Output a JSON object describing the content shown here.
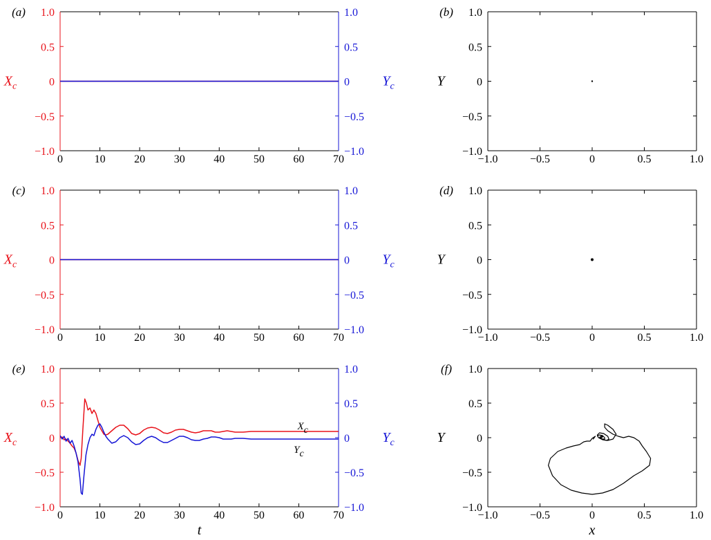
{
  "colors": {
    "x_series": "#e8121a",
    "y_series": "#1515d6",
    "trajectory": "#000000",
    "axes": "#000000"
  },
  "labels": {
    "xc_main": "X",
    "xc_sub": "c",
    "yc_main": "Y",
    "yc_sub": "c",
    "y_axis": "Y",
    "t_axis": "t",
    "x_axis": "x"
  },
  "chart_data": [
    {
      "id": "a",
      "panel_label": "(a)",
      "type": "line",
      "xlim": [
        0,
        70
      ],
      "ylim_left": [
        -1.0,
        1.0
      ],
      "ylim_right": [
        -1.0,
        1.0
      ],
      "x_ticks": [
        "0",
        "10",
        "20",
        "30",
        "40",
        "50",
        "60",
        "70"
      ],
      "y_ticks_left": [
        "1.0",
        "0.5",
        "0",
        "−0.5",
        "−1.0"
      ],
      "y_ticks_right": [
        "1.0",
        "0.5",
        "0",
        "−0.5",
        "−1.0"
      ],
      "ylabel_left": "Xc",
      "ylabel_right": "Yc",
      "xlabel": "",
      "series": [
        {
          "key": "X",
          "x": [
            0,
            70
          ],
          "y": [
            0.0,
            0.0
          ]
        },
        {
          "key": "Y",
          "x": [
            0,
            70
          ],
          "y": [
            0.0,
            0.0
          ]
        }
      ]
    },
    {
      "id": "b",
      "panel_label": "(b)",
      "type": "scatter",
      "xlim": [
        -1.0,
        1.0
      ],
      "ylim": [
        -1.0,
        1.0
      ],
      "x_ticks": [
        "−1.0",
        "−0.5",
        "0",
        "0.5",
        "1.0"
      ],
      "y_ticks": [
        "1.0",
        "0.5",
        "0",
        "−0.5",
        "−1.0"
      ],
      "ylabel": "Y",
      "xlabel": "",
      "points": [
        [
          0.0,
          0.0
        ]
      ]
    },
    {
      "id": "c",
      "panel_label": "(c)",
      "type": "line",
      "xlim": [
        0,
        70
      ],
      "ylim_left": [
        -1.0,
        1.0
      ],
      "ylim_right": [
        -1.0,
        1.0
      ],
      "x_ticks": [
        "0",
        "10",
        "20",
        "30",
        "40",
        "50",
        "60",
        "70"
      ],
      "y_ticks_left": [
        "1.0",
        "0.5",
        "0",
        "−0.5",
        "−1.0"
      ],
      "y_ticks_right": [
        "1.0",
        "0.5",
        "0",
        "−0.5",
        "−1.0"
      ],
      "ylabel_left": "Xc",
      "ylabel_right": "Yc",
      "xlabel": "",
      "series": [
        {
          "key": "X",
          "x": [
            0,
            70
          ],
          "y": [
            0.0,
            0.0
          ]
        },
        {
          "key": "Y",
          "x": [
            0,
            70
          ],
          "y": [
            0.0,
            0.0
          ]
        }
      ]
    },
    {
      "id": "d",
      "panel_label": "(d)",
      "type": "scatter",
      "xlim": [
        -1.0,
        1.0
      ],
      "ylim": [
        -1.0,
        1.0
      ],
      "x_ticks": [
        "−1.0",
        "−0.5",
        "0",
        "0.5",
        "1.0"
      ],
      "y_ticks": [
        "1.0",
        "0.5",
        "0",
        "−0.5",
        "−1.0"
      ],
      "ylabel": "Y",
      "xlabel": "",
      "points": [
        [
          0.0,
          0.0
        ]
      ]
    },
    {
      "id": "e",
      "panel_label": "(e)",
      "type": "line",
      "xlim": [
        0,
        70
      ],
      "ylim_left": [
        -1.0,
        1.0
      ],
      "ylim_right": [
        -1.0,
        1.0
      ],
      "x_ticks": [
        "0",
        "10",
        "20",
        "30",
        "40",
        "50",
        "60",
        "70"
      ],
      "y_ticks_left": [
        "1.0",
        "0.5",
        "0",
        "−0.5",
        "−1.0"
      ],
      "y_ticks_right": [
        "1.0",
        "0.5",
        "0",
        "−0.5",
        "−1.0"
      ],
      "ylabel_left": "Xc",
      "ylabel_right": "Yc",
      "xlabel": "t",
      "annotations": [
        {
          "text_main": "X",
          "text_sub": "c",
          "x": 61,
          "y": 0.17
        },
        {
          "text_main": "Y",
          "text_sub": "c",
          "x": 60,
          "y": -0.17
        }
      ],
      "series": [
        {
          "key": "X",
          "x": [
            0,
            0.5,
            1,
            1.5,
            2,
            2.5,
            3,
            3.5,
            4,
            4.5,
            5,
            5.3,
            5.7,
            6.2,
            6.6,
            7,
            7.5,
            8,
            8.5,
            9,
            9.5,
            10,
            10.5,
            11,
            11.5,
            12,
            13,
            14,
            15,
            16,
            17,
            18,
            19,
            20,
            21,
            22,
            23,
            24,
            25,
            26,
            27,
            28,
            29,
            30,
            31,
            32,
            33,
            34,
            35,
            36,
            37,
            38,
            39,
            40,
            41,
            42,
            43,
            44,
            45,
            46,
            48,
            50,
            52,
            55,
            60,
            65,
            70
          ],
          "y": [
            0.0,
            0.01,
            -0.03,
            -0.02,
            -0.05,
            -0.08,
            -0.12,
            -0.15,
            -0.22,
            -0.33,
            -0.4,
            -0.3,
            0.1,
            0.56,
            0.5,
            0.4,
            0.43,
            0.35,
            0.4,
            0.35,
            0.25,
            0.15,
            0.1,
            0.05,
            0.04,
            0.05,
            0.1,
            0.15,
            0.18,
            0.18,
            0.13,
            0.06,
            0.04,
            0.06,
            0.11,
            0.14,
            0.15,
            0.14,
            0.11,
            0.07,
            0.06,
            0.08,
            0.11,
            0.12,
            0.12,
            0.1,
            0.08,
            0.07,
            0.08,
            0.1,
            0.1,
            0.1,
            0.08,
            0.08,
            0.09,
            0.1,
            0.09,
            0.08,
            0.08,
            0.08,
            0.09,
            0.09,
            0.09,
            0.09,
            0.09,
            0.09,
            0.09
          ]
        },
        {
          "key": "Y",
          "x": [
            0,
            0.5,
            1,
            1.5,
            2,
            2.5,
            3,
            3.5,
            4,
            4.5,
            5,
            5.3,
            5.6,
            6,
            6.5,
            7,
            7.5,
            8,
            8.5,
            9,
            9.5,
            10,
            10.5,
            11,
            11.5,
            12,
            13,
            14,
            15,
            16,
            17,
            18,
            19,
            20,
            21,
            22,
            23,
            24,
            25,
            26,
            27,
            28,
            29,
            30,
            31,
            32,
            33,
            34,
            35,
            36,
            37,
            38,
            39,
            40,
            41,
            42,
            43,
            44,
            45,
            46,
            48,
            50,
            52,
            55,
            60,
            65,
            70
          ],
          "y": [
            0.03,
            -0.02,
            0.02,
            -0.05,
            -0.01,
            -0.08,
            -0.04,
            -0.12,
            -0.22,
            -0.35,
            -0.6,
            -0.8,
            -0.82,
            -0.55,
            -0.25,
            -0.1,
            0.0,
            0.05,
            0.03,
            0.12,
            0.18,
            0.2,
            0.15,
            0.08,
            0.02,
            -0.02,
            -0.08,
            -0.06,
            0.0,
            0.03,
            0.0,
            -0.06,
            -0.1,
            -0.09,
            -0.04,
            0.0,
            0.02,
            0.0,
            -0.04,
            -0.07,
            -0.07,
            -0.04,
            -0.01,
            0.02,
            0.02,
            0.0,
            -0.03,
            -0.04,
            -0.04,
            -0.02,
            -0.01,
            0.01,
            0.01,
            0.0,
            -0.02,
            -0.02,
            -0.02,
            -0.01,
            -0.01,
            -0.01,
            -0.02,
            -0.02,
            -0.02,
            -0.02,
            -0.02,
            -0.02,
            -0.02
          ]
        }
      ]
    },
    {
      "id": "f",
      "panel_label": "(f)",
      "type": "line",
      "xlim": [
        -1.0,
        1.0
      ],
      "ylim": [
        -1.0,
        1.0
      ],
      "x_ticks": [
        "−1.0",
        "−0.5",
        "0",
        "0.5",
        "1.0"
      ],
      "y_ticks": [
        "1.0",
        "0.5",
        "0",
        "−0.5",
        "−1.0"
      ],
      "ylabel": "Y",
      "xlabel": "x",
      "trajectory": {
        "x": [
          0.02,
          0.01,
          0.03,
          0.0,
          -0.02,
          -0.05,
          -0.08,
          -0.12,
          -0.18,
          -0.25,
          -0.33,
          -0.4,
          -0.42,
          -0.38,
          -0.3,
          -0.2,
          -0.1,
          0.0,
          0.1,
          0.2,
          0.3,
          0.4,
          0.48,
          0.55,
          0.56,
          0.52,
          0.48,
          0.45,
          0.4,
          0.35,
          0.3,
          0.25,
          0.2,
          0.15,
          0.12,
          0.12,
          0.15,
          0.2,
          0.23,
          0.2,
          0.15,
          0.1,
          0.06,
          0.05,
          0.07,
          0.11,
          0.15,
          0.16,
          0.14,
          0.1,
          0.06,
          0.05,
          0.07,
          0.1,
          0.12,
          0.12,
          0.1,
          0.08,
          0.07,
          0.08,
          0.1,
          0.1,
          0.09,
          0.08,
          0.08,
          0.09,
          0.09
        ],
        "y": [
          0.0,
          -0.02,
          0.02,
          -0.01,
          -0.05,
          -0.05,
          -0.06,
          -0.1,
          -0.12,
          -0.15,
          -0.2,
          -0.3,
          -0.4,
          -0.55,
          -0.68,
          -0.76,
          -0.8,
          -0.82,
          -0.8,
          -0.75,
          -0.66,
          -0.55,
          -0.48,
          -0.4,
          -0.3,
          -0.2,
          -0.12,
          -0.05,
          0.0,
          0.02,
          0.0,
          0.02,
          0.05,
          0.1,
          0.15,
          0.2,
          0.18,
          0.12,
          0.05,
          -0.02,
          -0.04,
          -0.03,
          0.0,
          0.04,
          0.07,
          0.06,
          0.02,
          -0.02,
          -0.04,
          -0.03,
          0.0,
          0.03,
          0.04,
          0.03,
          0.0,
          -0.02,
          -0.02,
          -0.01,
          0.0,
          0.02,
          0.02,
          0.01,
          0.0,
          -0.01,
          0.0,
          0.01,
          0.0
        ]
      }
    }
  ]
}
